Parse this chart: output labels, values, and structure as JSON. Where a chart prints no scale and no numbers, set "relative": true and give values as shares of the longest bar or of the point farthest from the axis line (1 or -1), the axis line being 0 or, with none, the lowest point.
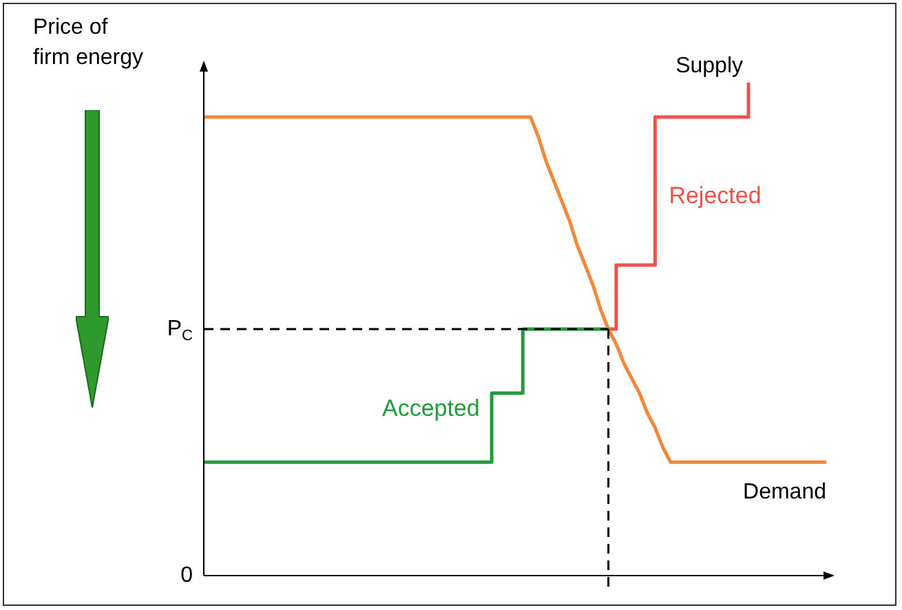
{
  "chart_data": {
    "type": "line",
    "relative": true,
    "ylabel": "Price of firm energy",
    "legend": false,
    "marker": "none",
    "line_style": "solid",
    "categories": [
      null,
      null,
      null,
      null,
      null,
      null,
      null,
      null,
      null,
      null,
      null,
      null,
      null,
      null,
      null,
      null,
      null,
      null,
      null,
      null,
      null,
      null,
      null,
      null,
      null,
      null,
      null,
      null,
      null,
      null,
      null,
      null,
      null,
      null,
      null,
      null,
      null,
      null,
      null,
      null,
      null,
      null,
      null,
      null,
      null,
      null,
      null,
      null,
      null,
      null,
      null,
      null,
      null,
      null,
      null,
      null,
      null,
      null,
      null,
      null,
      null,
      null,
      null,
      null,
      null,
      null,
      null,
      null,
      null,
      null,
      null,
      null,
      null,
      null,
      null,
      null,
      null,
      null,
      null,
      null,
      null
    ],
    "series": [
      {
        "color": "#f0893a",
        "values": [
          0.93,
          0.93,
          0.93,
          0.93,
          0.93,
          0.93,
          0.93,
          0.93,
          0.93,
          0.93,
          0.93,
          0.93,
          0.93,
          0.93,
          0.93,
          0.93,
          0.93,
          0.93,
          0.93,
          0.93,
          0.93,
          0.93,
          0.93,
          0.93,
          0.93,
          0.93,
          0.93,
          0.93,
          0.93,
          0.93,
          0.93,
          0.93,
          0.93,
          0.93,
          0.93,
          0.93,
          0.93,
          0.93,
          0.93,
          0.93,
          0.93,
          0.93,
          0.93,
          0.89,
          0.84,
          0.8,
          0.76,
          0.72,
          0.67,
          0.63,
          0.59,
          0.54,
          0.5,
          0.47,
          0.43,
          0.4,
          0.37,
          0.33,
          0.3,
          0.26,
          0.23,
          0.23,
          0.23,
          0.23,
          0.23,
          0.23,
          0.23,
          0.23,
          0.23,
          0.23,
          0.23,
          0.23,
          0.23,
          0.23,
          0.23,
          0.23,
          0.23,
          0.23,
          0.23,
          0.23,
          0.23
        ]
      },
      {
        "name": "Accepted",
        "type": "step",
        "color": "#239b3a",
        "values": [
          0.23,
          0.23,
          0.23,
          0.23,
          0.23,
          0.23,
          0.23,
          0.23,
          0.23,
          0.23,
          0.23,
          0.23,
          0.23,
          0.23,
          0.23,
          0.23,
          0.23,
          0.23,
          0.23,
          0.23,
          0.23,
          0.23,
          0.23,
          0.23,
          0.23,
          0.23,
          0.23,
          0.23,
          0.23,
          0.23,
          0.23,
          0.23,
          0.23,
          0.23,
          0.23,
          0.23,
          0.23,
          0.37,
          0.37,
          0.37,
          0.37,
          0.5,
          0.5,
          0.5,
          0.5,
          0.5,
          0.5,
          0.5,
          0.5,
          0.5,
          0.5,
          0.5,
          0.5,
          null,
          null,
          null,
          null,
          null,
          null,
          null,
          null,
          null,
          null,
          null,
          null,
          null,
          null,
          null,
          null,
          null,
          null,
          null,
          null,
          null,
          null,
          null,
          null,
          null,
          null,
          null,
          null
        ]
      },
      {
        "name": "Rejected",
        "type": "step",
        "color": "#f0524a",
        "values": [
          null,
          null,
          null,
          null,
          null,
          null,
          null,
          null,
          null,
          null,
          null,
          null,
          null,
          null,
          null,
          null,
          null,
          null,
          null,
          null,
          null,
          null,
          null,
          null,
          null,
          null,
          null,
          null,
          null,
          null,
          null,
          null,
          null,
          null,
          null,
          null,
          null,
          null,
          null,
          null,
          null,
          null,
          null,
          null,
          null,
          null,
          null,
          null,
          null,
          null,
          null,
          null,
          0.5,
          0.63,
          0.63,
          0.63,
          0.63,
          0.63,
          0.93,
          0.93,
          0.93,
          0.93,
          0.93,
          0.93,
          0.93,
          0.93,
          0.93,
          0.93,
          0.93,
          0.93,
          1.0,
          null,
          null,
          null,
          null,
          null,
          null,
          null,
          null,
          null,
          null
        ]
      }
    ],
    "ref_lines": [
      {
        "axis": "y",
        "value": 0.5,
        "label": "P$_{C}$",
        "line_style": "dashed",
        "color": "#000000"
      }
    ],
    "annotations": [
      "Supply",
      "Demand",
      "0"
    ]
  }
}
